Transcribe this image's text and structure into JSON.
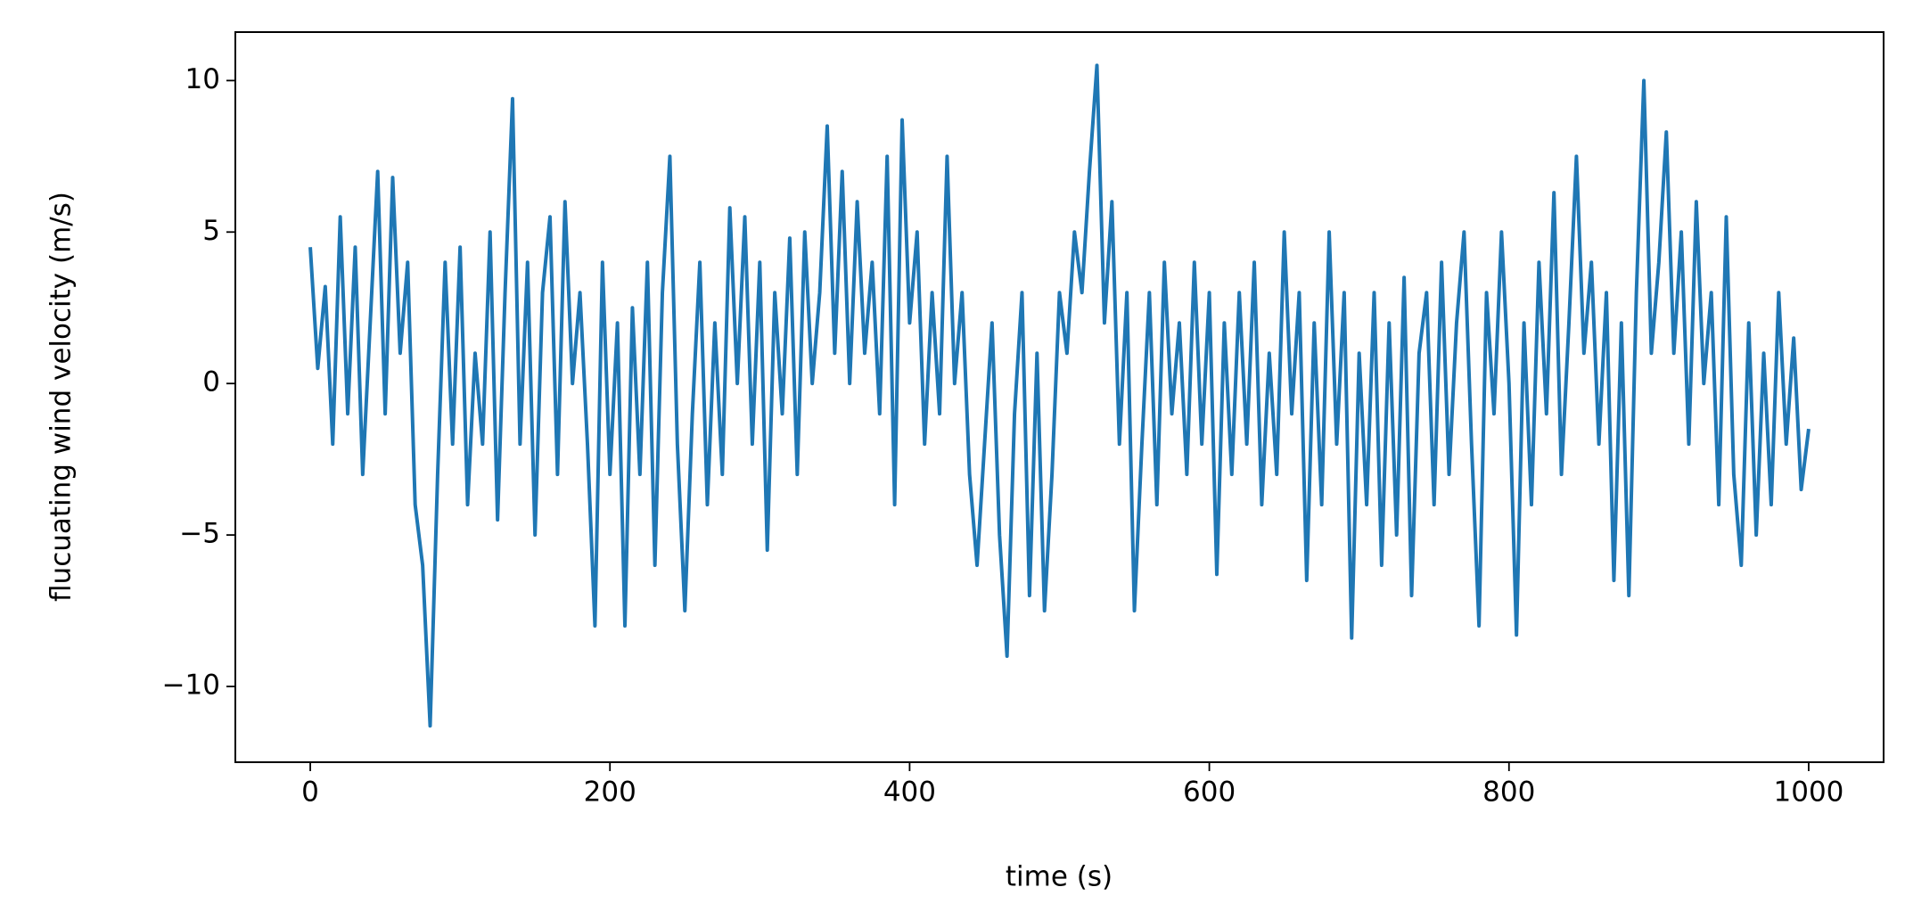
{
  "chart_data": {
    "type": "line",
    "xlabel": "time (s)",
    "ylabel": "flucuating wind velocity (m/s)",
    "x": [
      0,
      5,
      10,
      15,
      20,
      25,
      30,
      35,
      40,
      45,
      50,
      55,
      60,
      65,
      70,
      75,
      80,
      85,
      90,
      95,
      100,
      105,
      110,
      115,
      120,
      125,
      130,
      135,
      140,
      145,
      150,
      155,
      160,
      165,
      170,
      175,
      180,
      185,
      190,
      195,
      200,
      205,
      210,
      215,
      220,
      225,
      230,
      235,
      240,
      245,
      250,
      255,
      260,
      265,
      270,
      275,
      280,
      285,
      290,
      295,
      300,
      305,
      310,
      315,
      320,
      325,
      330,
      335,
      340,
      345,
      350,
      355,
      360,
      365,
      370,
      375,
      380,
      385,
      390,
      395,
      400,
      405,
      410,
      415,
      420,
      425,
      430,
      435,
      440,
      445,
      450,
      455,
      460,
      465,
      470,
      475,
      480,
      485,
      490,
      495,
      500,
      505,
      510,
      515,
      520,
      525,
      530,
      535,
      540,
      545,
      550,
      555,
      560,
      565,
      570,
      575,
      580,
      585,
      590,
      595,
      600,
      605,
      610,
      615,
      620,
      625,
      630,
      635,
      640,
      645,
      650,
      655,
      660,
      665,
      670,
      675,
      680,
      685,
      690,
      695,
      700,
      705,
      710,
      715,
      720,
      725,
      730,
      735,
      740,
      745,
      750,
      755,
      760,
      765,
      770,
      775,
      780,
      785,
      790,
      795,
      800,
      805,
      810,
      815,
      820,
      825,
      830,
      835,
      840,
      845,
      850,
      855,
      860,
      865,
      870,
      875,
      880,
      885,
      890,
      895,
      900,
      905,
      910,
      915,
      920,
      925,
      930,
      935,
      940,
      945,
      950,
      955,
      960,
      965,
      970,
      975,
      980,
      985,
      990,
      995,
      1000
    ],
    "series": [
      {
        "color": "#1f77b4",
        "values": [
          4.5,
          0.5,
          3.2,
          -2,
          5.5,
          -1,
          4.5,
          -3,
          2,
          7,
          -1,
          6.8,
          1,
          4,
          -4,
          -6,
          -11.3,
          -3,
          4,
          -2,
          4.5,
          -4,
          1,
          -2,
          5,
          -4.5,
          3,
          9.4,
          -2,
          4,
          -5,
          3,
          5.5,
          -3,
          6,
          0,
          3,
          -2,
          -8,
          4,
          -3,
          2,
          -8,
          2.5,
          -3,
          4,
          -6,
          3,
          7.5,
          -2,
          -7.5,
          -1,
          4,
          -4,
          2,
          -3,
          5.8,
          0,
          5.5,
          -2,
          4,
          -5.5,
          3,
          -1,
          4.8,
          -3,
          5,
          0,
          3,
          8.5,
          1,
          7,
          0,
          6,
          1,
          4,
          -1,
          7.5,
          -4,
          8.7,
          2,
          5,
          -2,
          3,
          -1,
          7.5,
          0,
          3,
          -3,
          -6,
          -2,
          2,
          -5,
          -9,
          -1,
          3,
          -7,
          1,
          -7.5,
          -3,
          3,
          1,
          5,
          3,
          7,
          10.5,
          2,
          6,
          -2,
          3,
          -7.5,
          -2,
          3,
          -4,
          4,
          -1,
          2,
          -3,
          4,
          -2,
          3,
          -6.3,
          2,
          -3,
          3,
          -2,
          4,
          -4,
          1,
          -3,
          5,
          -1,
          3,
          -6.5,
          2,
          -4,
          5,
          -2,
          3,
          -8.4,
          1,
          -4,
          3,
          -6,
          2,
          -5,
          3.5,
          -7,
          1,
          3,
          -4,
          4,
          -3,
          2,
          5,
          -2,
          -8,
          3,
          -1,
          5,
          0,
          -8.3,
          2,
          -4,
          4,
          -1,
          6.3,
          -3,
          2,
          7.5,
          1,
          4,
          -2,
          3,
          -6.5,
          2,
          -7,
          3,
          10,
          1,
          4,
          8.3,
          1,
          5,
          -2,
          6,
          0,
          3,
          -4,
          5.5,
          -3,
          -6,
          2,
          -5,
          1,
          -4,
          3,
          -2,
          1.5,
          -3.5,
          -1.5
        ]
      }
    ],
    "xlim": [
      -50,
      1050
    ],
    "xticks": [
      0,
      200,
      400,
      600,
      800,
      1000
    ],
    "ylim": [
      -12.5,
      11.6
    ],
    "yticks": [
      {
        "value": -10,
        "label": "−10"
      },
      {
        "value": -5,
        "label": "−5"
      },
      0,
      5,
      10
    ]
  }
}
